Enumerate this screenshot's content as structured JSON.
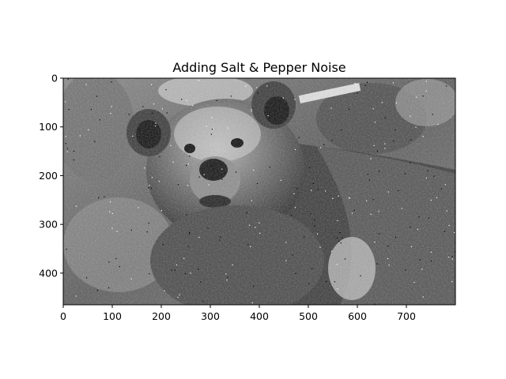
{
  "figure": {
    "title": "Adding Salt & Pepper Noise"
  },
  "image_axes": {
    "x_range": [
      0,
      800
    ],
    "y_range": [
      0,
      465
    ],
    "x_ticks": [
      {
        "value": 0,
        "label": "0"
      },
      {
        "value": 100,
        "label": "100"
      },
      {
        "value": 200,
        "label": "200"
      },
      {
        "value": 300,
        "label": "300"
      },
      {
        "value": 400,
        "label": "400"
      },
      {
        "value": 500,
        "label": "500"
      },
      {
        "value": 600,
        "label": "600"
      },
      {
        "value": 700,
        "label": "700"
      }
    ],
    "y_ticks": [
      {
        "value": 0,
        "label": "0"
      },
      {
        "value": 100,
        "label": "100"
      },
      {
        "value": 200,
        "label": "200"
      },
      {
        "value": 300,
        "label": "300"
      },
      {
        "value": 400,
        "label": "400"
      }
    ]
  },
  "photo": {
    "subject": "grayscale brown bear portrait with salt & pepper noise",
    "colormap": "gray"
  }
}
